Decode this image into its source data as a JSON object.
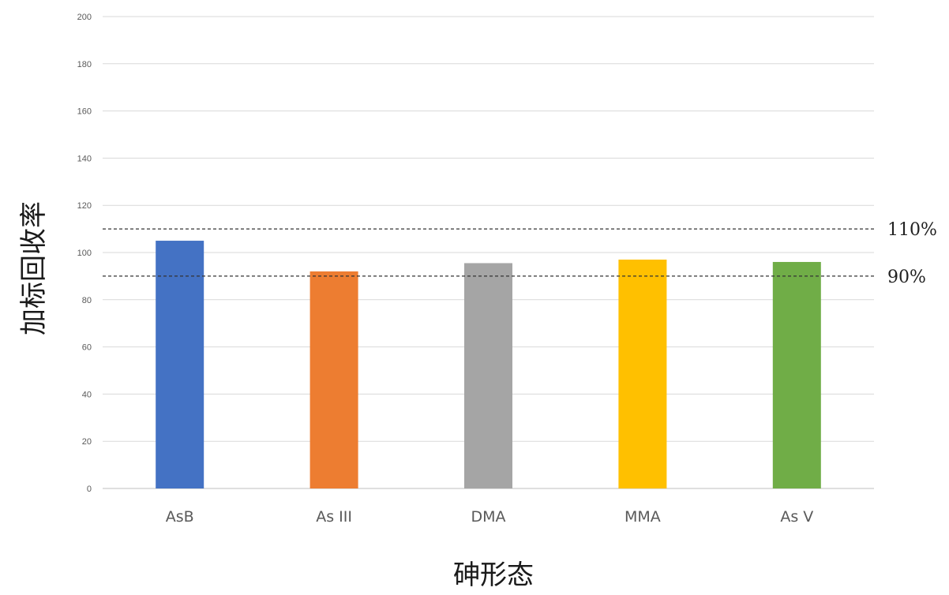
{
  "chart_data": {
    "type": "bar",
    "categories": [
      "AsB",
      "As III",
      "DMA",
      "MMA",
      "As V"
    ],
    "values": [
      105,
      92,
      95.5,
      97,
      96
    ],
    "colors": [
      "#4472c4",
      "#ed7d31",
      "#a5a5a5",
      "#ffc000",
      "#70ad47"
    ],
    "xlabel": "砷形态",
    "ylabel": "加标回收率",
    "ylim": [
      0,
      200
    ],
    "yticks": [
      0,
      20,
      40,
      60,
      80,
      100,
      120,
      140,
      160,
      180,
      200
    ],
    "grid": true,
    "reference_lines": [
      {
        "value": 110,
        "label": "110%",
        "style": "dashed"
      },
      {
        "value": 90,
        "label": "90%",
        "style": "dashed"
      }
    ]
  }
}
